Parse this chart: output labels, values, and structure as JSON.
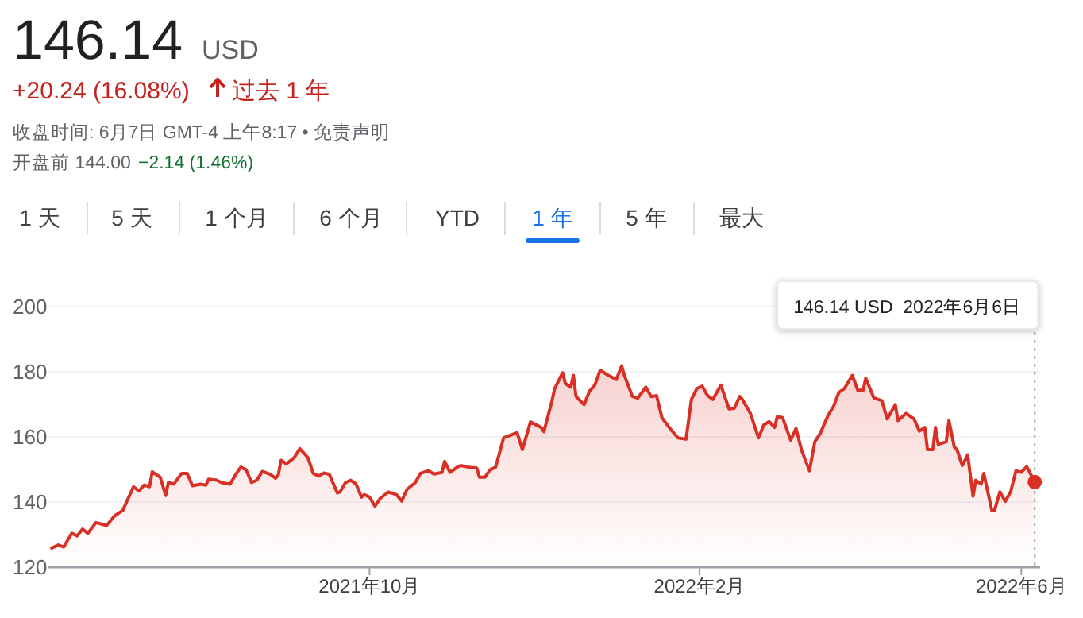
{
  "chart_data": {
    "type": "area",
    "title": "146.14",
    "subtitle": "USD",
    "annotations": [
      "+20.24 (16.08%)",
      "过去 1 年",
      "收盘时间: 6月7日 GMT-4 上午8:17 • 免责声明",
      "开盘前 144.00",
      "−2.14 (1.46%)",
      "1 天",
      "5 天",
      "1 个月",
      "6 个月",
      "YTD",
      "1 年",
      "5 年",
      "最大",
      "146.14 USD  2022年6月6日"
    ],
    "xlim": [
      "2021-06-03",
      "2022-06-08"
    ],
    "ylim": [
      120,
      200
    ],
    "xticks": [
      {
        "value": "2021-10-01",
        "label": "2021年10月"
      },
      {
        "value": "2022-02-01",
        "label": "2022年2月"
      },
      {
        "value": "2022-06-01",
        "label": "2022年6月"
      }
    ],
    "yticks": [
      120,
      140,
      160,
      180,
      200
    ],
    "grid": "y",
    "marker": "none",
    "line_style": "solid",
    "ref_lines": [
      {
        "axis": "x",
        "value": "2022-06-06",
        "color": "#9aa0a6",
        "line_style": "dotted"
      }
    ],
    "series": [
      {
        "color": "#d93025",
        "x": [
          "2021-06-04",
          "2021-06-07",
          "2021-06-09",
          "2021-06-12",
          "2021-06-14",
          "2021-06-16",
          "2021-06-18",
          "2021-06-21",
          "2021-06-25",
          "2021-06-28",
          "2021-07-01",
          "2021-07-05",
          "2021-07-07",
          "2021-07-09",
          "2021-07-11",
          "2021-07-12",
          "2021-07-15",
          "2021-07-17",
          "2021-07-18",
          "2021-07-20",
          "2021-07-23",
          "2021-07-25",
          "2021-07-27",
          "2021-07-30",
          "2021-08-01",
          "2021-08-02",
          "2021-08-05",
          "2021-08-07",
          "2021-08-10",
          "2021-08-12",
          "2021-08-14",
          "2021-08-16",
          "2021-08-18",
          "2021-08-20",
          "2021-08-22",
          "2021-08-25",
          "2021-08-27",
          "2021-08-28",
          "2021-08-29",
          "2021-08-31",
          "2021-09-03",
          "2021-09-05",
          "2021-09-08",
          "2021-09-10",
          "2021-09-12",
          "2021-09-14",
          "2021-09-16",
          "2021-09-19",
          "2021-09-20",
          "2021-09-22",
          "2021-09-24",
          "2021-09-26",
          "2021-09-28",
          "2021-09-29",
          "2021-10-01",
          "2021-10-03",
          "2021-10-05",
          "2021-10-08",
          "2021-10-11",
          "2021-10-13",
          "2021-10-15",
          "2021-10-18",
          "2021-10-20",
          "2021-10-23",
          "2021-10-25",
          "2021-10-28",
          "2021-10-29",
          "2021-10-31",
          "2021-11-03",
          "2021-11-04",
          "2021-11-07",
          "2021-11-10",
          "2021-11-11",
          "2021-11-13",
          "2021-11-15",
          "2021-11-17",
          "2021-11-20",
          "2021-11-25",
          "2021-11-27",
          "2021-11-30",
          "2021-12-04",
          "2021-12-05",
          "2021-12-08",
          "2021-12-09",
          "2021-12-12",
          "2021-12-13",
          "2021-12-15",
          "2021-12-16",
          "2021-12-17",
          "2021-12-20",
          "2021-12-22",
          "2021-12-24",
          "2021-12-26",
          "2021-12-29",
          "2022-01-01",
          "2022-01-03",
          "2022-01-04",
          "2022-01-07",
          "2022-01-09",
          "2022-01-12",
          "2022-01-14",
          "2022-01-16",
          "2022-01-18",
          "2022-01-21",
          "2022-01-24",
          "2022-01-27",
          "2022-01-29",
          "2022-01-31",
          "2022-02-02",
          "2022-02-04",
          "2022-02-06",
          "2022-02-09",
          "2022-02-12",
          "2022-02-14",
          "2022-02-16",
          "2022-02-17",
          "2022-02-20",
          "2022-02-23",
          "2022-02-25",
          "2022-02-27",
          "2022-03-01",
          "2022-03-02",
          "2022-03-04",
          "2022-03-07",
          "2022-03-09",
          "2022-03-11",
          "2022-03-14",
          "2022-03-16",
          "2022-03-18",
          "2022-03-21",
          "2022-03-23",
          "2022-03-25",
          "2022-03-27",
          "2022-03-30",
          "2022-04-01",
          "2022-04-03",
          "2022-04-04",
          "2022-04-07",
          "2022-04-10",
          "2022-04-12",
          "2022-04-15",
          "2022-04-16",
          "2022-04-19",
          "2022-04-22",
          "2022-04-24",
          "2022-04-26",
          "2022-04-27",
          "2022-04-29",
          "2022-04-30",
          "2022-05-01",
          "2022-05-04",
          "2022-05-05",
          "2022-05-07",
          "2022-05-08",
          "2022-05-10",
          "2022-05-12",
          "2022-05-14",
          "2022-05-15",
          "2022-05-17",
          "2022-05-18",
          "2022-05-21",
          "2022-05-22",
          "2022-05-24",
          "2022-05-26",
          "2022-05-28",
          "2022-05-30",
          "2022-06-01",
          "2022-06-03",
          "2022-06-06"
        ],
        "values": [
          125.7,
          126.8,
          126.2,
          130.4,
          129.6,
          131.7,
          130.4,
          133.7,
          132.8,
          135.8,
          137.4,
          144.7,
          143.4,
          145.2,
          144.7,
          149.3,
          147.6,
          142,
          146,
          145.5,
          148.8,
          148.8,
          145,
          145.5,
          145.2,
          147,
          146.7,
          145.9,
          145.5,
          148.3,
          150.7,
          149.9,
          146,
          146.7,
          149.4,
          148.5,
          147.3,
          148.3,
          152.8,
          151.7,
          153.7,
          156.4,
          153.7,
          148.8,
          148,
          148.9,
          148.5,
          142.8,
          143.1,
          145.9,
          146.7,
          145.5,
          141.5,
          142.3,
          141.5,
          138.7,
          141.1,
          143.1,
          142.3,
          140.3,
          143.9,
          145.9,
          148.8,
          149.6,
          148.6,
          149.1,
          152.5,
          149.1,
          150.9,
          151.2,
          150.7,
          150.4,
          147.6,
          147.6,
          149.9,
          150.7,
          159.7,
          161.3,
          156.1,
          164.6,
          162.9,
          161.6,
          171,
          174.8,
          179.7,
          176.4,
          175.3,
          178.9,
          172.4,
          169.9,
          174,
          175.9,
          180.5,
          178.9,
          177.6,
          181.8,
          178.9,
          172.4,
          171.9,
          175.3,
          172.4,
          172.7,
          165.9,
          162.6,
          159.7,
          159.3,
          171.5,
          174.8,
          175.6,
          172.7,
          171.5,
          175.9,
          168.6,
          168.8,
          172.4,
          171.5,
          167.2,
          159.7,
          163.7,
          164.7,
          162.9,
          166.2,
          165.9,
          159,
          162.6,
          156.1,
          149.6,
          158.5,
          161,
          166.7,
          169.4,
          173.7,
          174.8,
          178.9,
          174.3,
          174.3,
          178,
          172,
          171.1,
          165.5,
          169.9,
          165,
          167.2,
          165.5,
          161.8,
          162.9,
          156.1,
          156.1,
          162.9,
          157.7,
          158.5,
          165,
          156.9,
          156.1,
          151.2,
          154.5,
          141.8,
          146.7,
          145.5,
          148.8,
          137.4,
          137.4,
          143.1,
          140.2,
          143.1,
          149.6,
          149.1,
          150.9,
          146.14
        ]
      }
    ]
  }
}
